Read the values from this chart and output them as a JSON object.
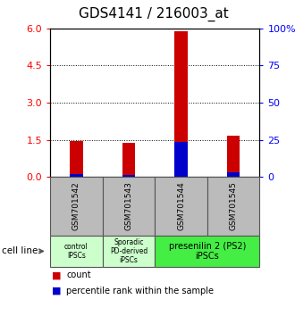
{
  "title": "GDS4141 / 216003_at",
  "samples": [
    "GSM701542",
    "GSM701543",
    "GSM701544",
    "GSM701545"
  ],
  "count_values": [
    1.45,
    1.38,
    5.88,
    1.68
  ],
  "percentile_values": [
    0.11,
    0.07,
    1.42,
    0.2
  ],
  "ylim_left": [
    0,
    6
  ],
  "ylim_right": [
    0,
    100
  ],
  "yticks_left": [
    0,
    1.5,
    3.0,
    4.5,
    6.0
  ],
  "yticks_right": [
    0,
    25,
    50,
    75,
    100
  ],
  "hlines": [
    1.5,
    3.0,
    4.5
  ],
  "bar_color_red": "#cc0000",
  "bar_color_blue": "#0000cc",
  "cell_line_label": "cell line",
  "group_spans": [
    [
      0,
      1,
      "control\nIPSCs",
      "#ccffcc"
    ],
    [
      1,
      2,
      "Sporadic\nPD-derived\niPSCs",
      "#ccffcc"
    ],
    [
      2,
      4,
      "presenilin 2 (PS2)\niPSCs",
      "#44ee44"
    ]
  ],
  "legend_count": "count",
  "legend_percentile": "percentile rank within the sample",
  "bar_width": 0.25,
  "tick_label_fontsize": 8,
  "title_fontsize": 11,
  "sample_label_color": "#bbbbbb",
  "group_border_color": "#888888"
}
